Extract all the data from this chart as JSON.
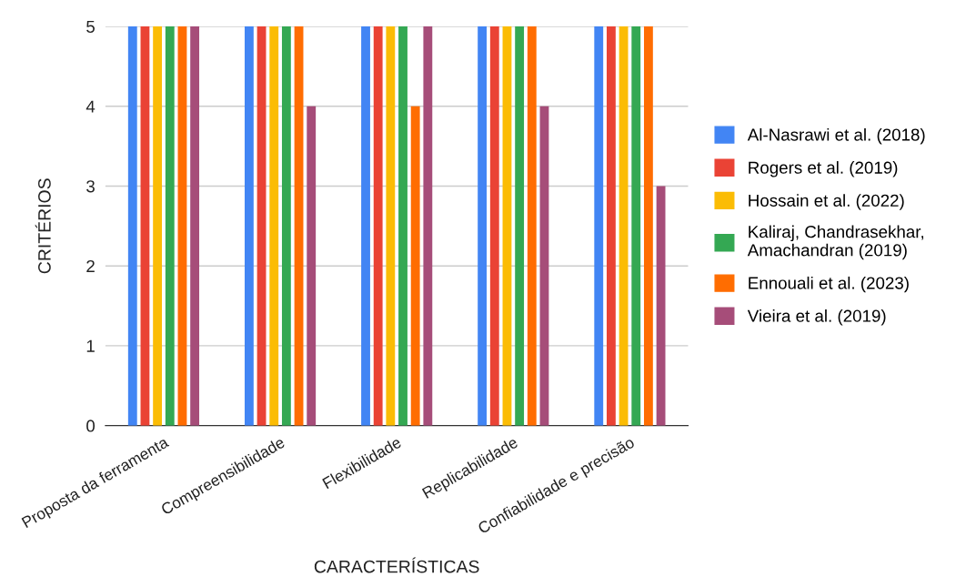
{
  "chart_data": {
    "type": "bar",
    "xlabel": "CARACTERÍSTICAS",
    "ylabel": "CRITÉRIOS",
    "categories": [
      "Proposta da ferramenta",
      "Compreensibilidade",
      "Flexibilidade",
      "Replicabilidade",
      "Confiabilidade e precisão"
    ],
    "series": [
      {
        "name": "Al-Nasrawi et al. (2018)",
        "color": "#4285f4",
        "values": [
          5,
          5,
          5,
          5,
          5
        ]
      },
      {
        "name": "Rogers et al. (2019)",
        "color": "#ea4335",
        "values": [
          5,
          5,
          5,
          5,
          5
        ]
      },
      {
        "name": "Hossain et al. (2022)",
        "color": "#fbbc04",
        "values": [
          5,
          5,
          5,
          5,
          5
        ]
      },
      {
        "name": "Kaliraj, Chandrasekhar,\nAmachandran (2019)",
        "color": "#34a853",
        "values": [
          5,
          5,
          5,
          5,
          5
        ]
      },
      {
        "name": "Ennouali et al. (2023)",
        "color": "#ff6d01",
        "values": [
          5,
          5,
          4,
          5,
          5
        ]
      },
      {
        "name": "Vieira et al. (2019)",
        "color": "#a64d79",
        "values": [
          5,
          4,
          5,
          4,
          3
        ]
      }
    ],
    "ylim": [
      0,
      5
    ],
    "yticks": [
      0,
      1,
      2,
      3,
      4,
      5
    ],
    "grid": "y",
    "legend": "right"
  }
}
